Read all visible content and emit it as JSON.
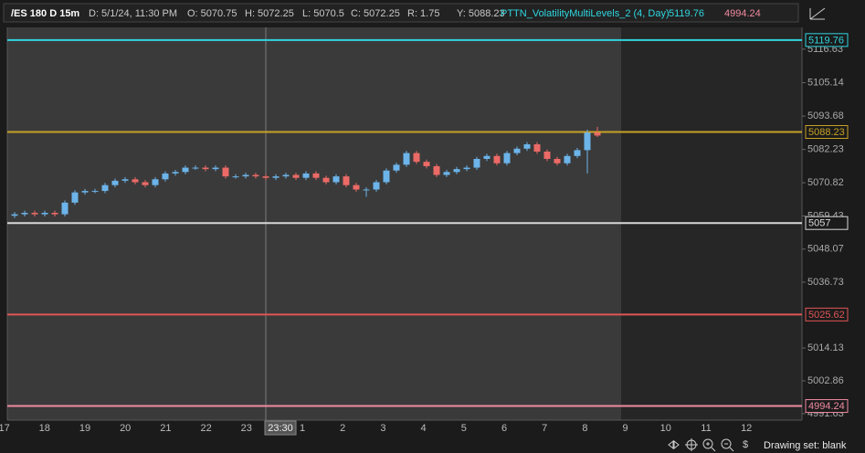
{
  "header": {
    "symbol": "/ES 180 D 15m",
    "date": "D: 5/1/24, 11:30 PM",
    "open": "O: 5070.75",
    "high": "H: 5072.25",
    "low": "L: 5070.5",
    "close": "C: 5072.25",
    "range": "R: 1.75",
    "y": "Y: 5088.23",
    "study": "PTTN_VolatilityMultiLevels_2 (4, Day)",
    "study_upper": "5119.76",
    "study_lower": "4994.24"
  },
  "footer": {
    "drawing_set": "Drawing set: blank"
  },
  "chart_data": {
    "type": "candlestick",
    "up_color": "#6cb4ea",
    "down_color": "#ec6a66",
    "ylim": [
      4989.4,
      5124.1
    ],
    "yticks": [
      4991.63,
      5002.86,
      5014.13,
      5036.73,
      5048.07,
      5059.43,
      5070.82,
      5082.23,
      5093.68,
      5105.14,
      5116.63
    ],
    "x_labels": [
      "17",
      "18",
      "19",
      "20",
      "21",
      "22",
      "23",
      "1",
      "2",
      "3",
      "4",
      "5",
      "6",
      "7",
      "8",
      "9",
      "10",
      "11",
      "12"
    ],
    "cursor_label": "23:30",
    "levels": [
      {
        "value": 5119.76,
        "color": "#2fd6e0"
      },
      {
        "value": 5088.23,
        "color": "#c9a227"
      },
      {
        "value": 5057,
        "color": "#d8d8d8"
      },
      {
        "value": 5025.62,
        "color": "#e05555"
      },
      {
        "value": 4994.24,
        "color": "#f08aa0"
      }
    ],
    "open": [
      5059.5,
      5060,
      5060.5,
      5060,
      5060.5,
      5060,
      5064,
      5067.5,
      5068,
      5068,
      5070,
      5071.5,
      5072,
      5071,
      5070,
      5072,
      5074,
      5074.5,
      5076,
      5076,
      5075.5,
      5076,
      5073,
      5073,
      5073.5,
      5073,
      5072.5,
      5073,
      5073.5,
      5072.5,
      5074,
      5072.5,
      5071,
      5073,
      5070,
      5068.5,
      5068.5,
      5071,
      5075,
      5077,
      5081,
      5078,
      5076.5,
      5073.5,
      5074.5,
      5075.5,
      5076,
      5079,
      5080,
      5077.5,
      5081,
      5082.5,
      5084,
      5081.5,
      5079,
      5077.5,
      5080,
      5082,
      5088
    ],
    "high": [
      5060.75,
      5061.25,
      5061.25,
      5061.25,
      5061.25,
      5064.75,
      5068.25,
      5068.75,
      5068.75,
      5070.75,
      5072.25,
      5072.75,
      5072.75,
      5071.75,
      5072.75,
      5074.75,
      5075.25,
      5076.75,
      5076.75,
      5076.75,
      5076.75,
      5076.75,
      5073.75,
      5074.25,
      5074.25,
      5073.75,
      5073.75,
      5074.25,
      5074.25,
      5074.75,
      5074.75,
      5073.25,
      5073.75,
      5073.75,
      5070.75,
      5069.25,
      5071.75,
      5075.75,
      5077.75,
      5081.75,
      5081.75,
      5078.75,
      5077.25,
      5075.25,
      5076.25,
      5076.75,
      5079.75,
      5080.75,
      5080.75,
      5081.75,
      5083.25,
      5084.75,
      5084.75,
      5082.25,
      5079.75,
      5080.75,
      5082.75,
      5089,
      5090
    ],
    "low": [
      5058.75,
      5059.25,
      5059.25,
      5059.25,
      5059.25,
      5059.25,
      5063.25,
      5066.75,
      5067.25,
      5067.25,
      5069.25,
      5070.75,
      5070.25,
      5069.25,
      5069.25,
      5071.25,
      5073.25,
      5073.75,
      5075.25,
      5074.75,
      5074.75,
      5072.25,
      5072.25,
      5072.25,
      5072.25,
      5071.75,
      5071.75,
      5072.25,
      5071.75,
      5071.75,
      5071.75,
      5070.25,
      5070.25,
      5069.25,
      5067.75,
      5066,
      5067.75,
      5070.25,
      5074.25,
      5076.25,
      5077.25,
      5075.75,
      5072.75,
      5072.75,
      5073.75,
      5074.75,
      5075.25,
      5078.25,
      5076.75,
      5076.75,
      5080.25,
      5081.75,
      5080.75,
      5078.25,
      5076.75,
      5076.75,
      5079.25,
      5074,
      5086.5
    ],
    "close": [
      5060,
      5060.5,
      5060,
      5060.5,
      5060,
      5064,
      5067.5,
      5068,
      5068,
      5070,
      5071.5,
      5072,
      5071,
      5070,
      5072,
      5074,
      5074.5,
      5076,
      5076,
      5075.5,
      5076,
      5073,
      5073,
      5073.5,
      5073,
      5072.5,
      5073,
      5073.5,
      5072.5,
      5074,
      5072.5,
      5071,
      5073,
      5070,
      5068.5,
      5068.5,
      5071,
      5075,
      5077,
      5081,
      5078,
      5076.5,
      5073.5,
      5074.5,
      5075.5,
      5076,
      5079,
      5080,
      5077.5,
      5081,
      5082.5,
      5084,
      5081.5,
      5079,
      5077.5,
      5080,
      5082,
      5088,
      5087
    ]
  }
}
